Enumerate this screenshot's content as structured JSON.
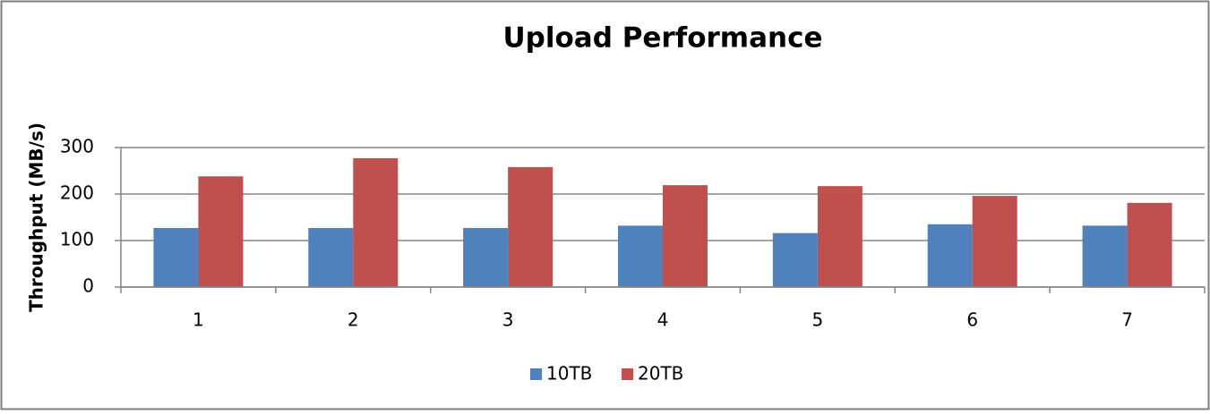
{
  "chart_data": {
    "type": "bar",
    "title": "Upload Performance",
    "ylabel": "Throughput (MB/s)",
    "categories": [
      "1",
      "2",
      "3",
      "4",
      "5",
      "6",
      "7"
    ],
    "series": [
      {
        "name": "10TB",
        "color": "#4f81bd",
        "values": [
          127,
          127,
          127,
          132,
          116,
          135,
          132
        ]
      },
      {
        "name": "20TB",
        "color": "#c0504d",
        "values": [
          238,
          277,
          258,
          219,
          217,
          196,
          181
        ]
      }
    ],
    "ylim": [
      0,
      300
    ],
    "yticks": [
      0,
      100,
      200,
      300
    ],
    "grid": true,
    "legend": "bottom"
  }
}
